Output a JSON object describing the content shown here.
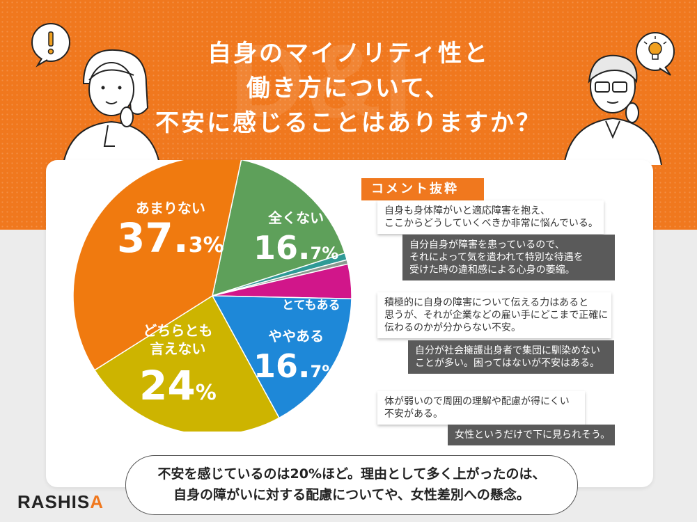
{
  "title": {
    "line1": "自身のマイノリティ性と",
    "line2": "働き方について、",
    "line3": "不安に感じることはありますか？"
  },
  "watermark": "D&I",
  "chart_data": {
    "type": "pie",
    "title": "自身のマイノリティ性と働き方について、不安に感じることはありますか？",
    "unit": "%",
    "slices": [
      {
        "label": "全くない",
        "value": 16.7,
        "color": "#5ea05a",
        "int": "16",
        "dec": "7",
        "pct": "%"
      },
      {
        "label": "",
        "value": 0.8,
        "color": "#2f9a96"
      },
      {
        "label": "",
        "value": 0.5,
        "color": "#8a9a90"
      },
      {
        "label": "とてもある",
        "value": 4.0,
        "color": "#d1168a"
      },
      {
        "label": "ややある",
        "value": 16.7,
        "color": "#1e88d8",
        "int": "16",
        "dec": "7",
        "pct": "%"
      },
      {
        "label": "どちらとも言えない",
        "value": 24.0,
        "color": "#cdb400",
        "int": "24",
        "dec": "",
        "pct": "%"
      },
      {
        "label": "あまりない",
        "value": 37.3,
        "color": "#f07a0f",
        "int": "37",
        "dec": "3",
        "pct": "%"
      }
    ]
  },
  "labels": {
    "zen": {
      "name": "全くない",
      "int": "16.",
      "dec": "7",
      "pct": "%"
    },
    "tote": {
      "name": "とてもある"
    },
    "yaya": {
      "name": "ややある",
      "int": "16.",
      "dec": "7",
      "pct": "%"
    },
    "dochira": {
      "name1": "どちらとも",
      "name2": "言えない",
      "int": "24",
      "pct": "%"
    },
    "amari": {
      "name": "あまりない",
      "int": "37.",
      "dec": "3",
      "pct": "%"
    }
  },
  "comments": {
    "header": "コメント抜粋",
    "c1": [
      "自身も身体障がいと適応障害を抱え、",
      "ここからどうしていくべきか非常に悩んでいる。"
    ],
    "c2": [
      "自分自身が障害を患っているので、",
      "それによって気を遣われて特別な待遇を",
      "受けた時の違和感による心身の萎縮。"
    ],
    "c3": [
      "積極的に自身の障害について伝える力はあると",
      "思うが、それが企業などの雇い手にどこまで正確に",
      "伝わるのかが分からない不安。"
    ],
    "c4": [
      "自分が社会擁護出身者で集団に馴染めない",
      "ことが多い。困ってはないが不安はある。"
    ],
    "c5": [
      "体が弱いので周囲の理解や配慮が得にくい",
      "不安がある。"
    ],
    "c6": [
      "女性というだけで下に見られそう。"
    ]
  },
  "summary": {
    "line1": "不安を感じているのは20%ほど。理由として多く上がったのは、",
    "line2": "自身の障がいに対する配慮についてや、女性差別への懸念。"
  },
  "logo": {
    "main": "RASHIS",
    "accent": "A"
  },
  "bubbles": {
    "left": "!",
    "right": "bulb-icon"
  }
}
